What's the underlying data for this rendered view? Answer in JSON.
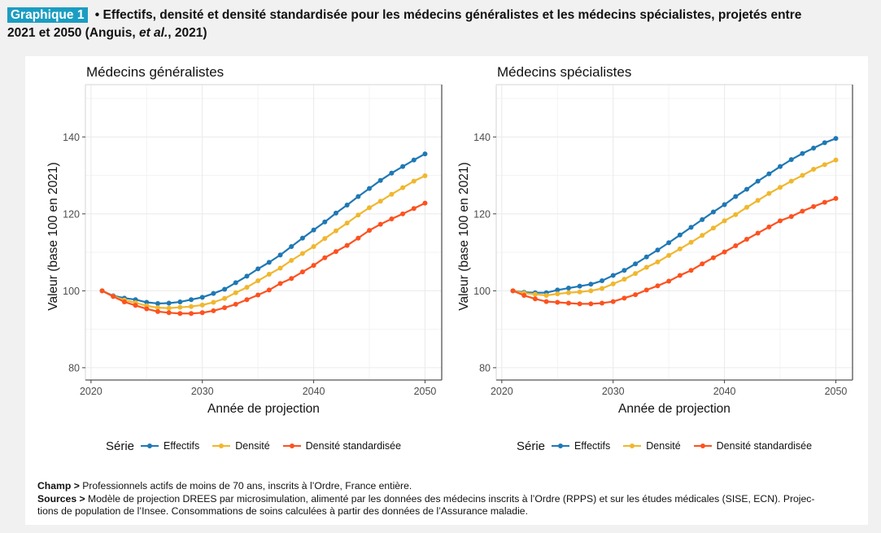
{
  "header": {
    "badge": "Graphique 1",
    "bullet": " • ",
    "title_main": "Effectifs, densité et densité standardisée pour les médecins généralistes et les médecins spécialistes, projetés entre",
    "title_line2_prefix": "2021 et 2050 (Anguis, ",
    "title_line2_italic": "et al.",
    "title_line2_suffix": ", 2021)"
  },
  "colors": {
    "badge": "#1b9dc2",
    "effectifs": "#1f78b4",
    "densite": "#f0b72f",
    "densite_standardisee": "#fc5220",
    "grid": "#ebebeb",
    "axis": "#555555"
  },
  "legend": {
    "title": "Série",
    "items": [
      {
        "label": "Effectifs",
        "color_key": "effectifs"
      },
      {
        "label": "Densité",
        "color_key": "densite"
      },
      {
        "label": "Densité standardisée",
        "color_key": "densite_standardisee"
      }
    ]
  },
  "chart_data": [
    {
      "type": "line",
      "title": "Médecins généralistes",
      "xlabel": "Année de projection",
      "ylabel": "Valeur (base 100 en 2021)",
      "xlim": [
        2019.5,
        2051.5
      ],
      "ylim": [
        76.8,
        153.6
      ],
      "xticks": [
        2020,
        2030,
        2040,
        2050
      ],
      "yticks": [
        80,
        100,
        120,
        140
      ],
      "grid": true,
      "legend_position": "bottom",
      "x": [
        2021,
        2022,
        2023,
        2024,
        2025,
        2026,
        2027,
        2028,
        2029,
        2030,
        2031,
        2032,
        2033,
        2034,
        2035,
        2036,
        2037,
        2038,
        2039,
        2040,
        2041,
        2042,
        2043,
        2044,
        2045,
        2046,
        2047,
        2048,
        2049,
        2050
      ],
      "series": [
        {
          "name": "Effectifs",
          "color_key": "effectifs",
          "values": [
            100,
            98.7,
            98.1,
            97.7,
            97.0,
            96.7,
            96.8,
            97.1,
            97.7,
            98.3,
            99.3,
            100.4,
            102.1,
            103.8,
            105.7,
            107.4,
            109.3,
            111.5,
            113.7,
            115.8,
            117.9,
            120.2,
            122.3,
            124.5,
            126.6,
            128.7,
            130.6,
            132.3,
            134.0,
            135.6
          ]
        },
        {
          "name": "Densité",
          "color_key": "densite",
          "values": [
            100,
            98.6,
            97.6,
            96.9,
            96.1,
            95.6,
            95.5,
            95.7,
            95.9,
            96.3,
            97.0,
            98.0,
            99.5,
            100.9,
            102.6,
            104.3,
            105.9,
            107.9,
            109.7,
            111.5,
            113.6,
            115.6,
            117.6,
            119.7,
            121.6,
            123.3,
            125.1,
            126.8,
            128.5,
            129.9
          ]
        },
        {
          "name": "Densité standardisée",
          "color_key": "densite_standardisee",
          "values": [
            100,
            98.5,
            97.1,
            96.2,
            95.3,
            94.6,
            94.3,
            94.1,
            94.1,
            94.3,
            94.8,
            95.6,
            96.5,
            97.7,
            98.9,
            100.2,
            101.9,
            103.2,
            104.9,
            106.6,
            108.6,
            110.2,
            111.8,
            113.7,
            115.7,
            117.3,
            118.7,
            120.0,
            121.4,
            122.8
          ]
        }
      ]
    },
    {
      "type": "line",
      "title": "Médecins spécialistes",
      "xlabel": "Année de projection",
      "ylabel": "Valeur (base 100 en 2021)",
      "xlim": [
        2019.5,
        2051.5
      ],
      "ylim": [
        76.8,
        153.6
      ],
      "xticks": [
        2020,
        2030,
        2040,
        2050
      ],
      "yticks": [
        80,
        100,
        120,
        140
      ],
      "grid": true,
      "legend_position": "bottom",
      "x": [
        2021,
        2022,
        2023,
        2024,
        2025,
        2026,
        2027,
        2028,
        2029,
        2030,
        2031,
        2032,
        2033,
        2034,
        2035,
        2036,
        2037,
        2038,
        2039,
        2040,
        2041,
        2042,
        2043,
        2044,
        2045,
        2046,
        2047,
        2048,
        2049,
        2050
      ],
      "series": [
        {
          "name": "Effectifs",
          "color_key": "effectifs",
          "values": [
            100,
            99.6,
            99.5,
            99.5,
            100.2,
            100.7,
            101.2,
            101.7,
            102.6,
            104.0,
            105.3,
            107.0,
            108.8,
            110.6,
            112.5,
            114.5,
            116.5,
            118.5,
            120.5,
            122.4,
            124.5,
            126.4,
            128.5,
            130.4,
            132.3,
            134.1,
            135.7,
            137.1,
            138.5,
            139.6
          ]
        },
        {
          "name": "Densité",
          "color_key": "densite",
          "values": [
            100,
            99.4,
            99.1,
            98.8,
            99.2,
            99.5,
            99.7,
            100.0,
            100.6,
            101.8,
            103.0,
            104.5,
            106.1,
            107.5,
            109.2,
            110.9,
            112.6,
            114.4,
            116.3,
            118.2,
            119.8,
            121.7,
            123.5,
            125.3,
            126.9,
            128.5,
            130.0,
            131.6,
            132.8,
            134.0
          ]
        },
        {
          "name": "Densité standardisée",
          "color_key": "densite_standardisee",
          "values": [
            100,
            98.8,
            97.9,
            97.2,
            97.0,
            96.8,
            96.6,
            96.6,
            96.8,
            97.2,
            98.1,
            99.0,
            100.2,
            101.3,
            102.5,
            104.0,
            105.3,
            107.0,
            108.6,
            110.1,
            111.7,
            113.4,
            115.0,
            116.6,
            118.2,
            119.3,
            120.7,
            121.9,
            123.0,
            124.0
          ]
        }
      ]
    }
  ],
  "footer": {
    "champ_label": "Champ >",
    "champ_text": " Professionnels actifs de moins de 70 ans, inscrits à l’Ordre, France entière.",
    "sources_label": "Sources >",
    "sources_text_line1": " Modèle de projection DREES par microsimulation, alimenté par les données des médecins inscrits à l’Ordre (RPPS) et sur les études médicales (SISE, ECN). Projec-",
    "sources_text_line2": "tions de population de l’Insee. Consommations de soins calculées à partir des données de l’Assurance maladie."
  }
}
